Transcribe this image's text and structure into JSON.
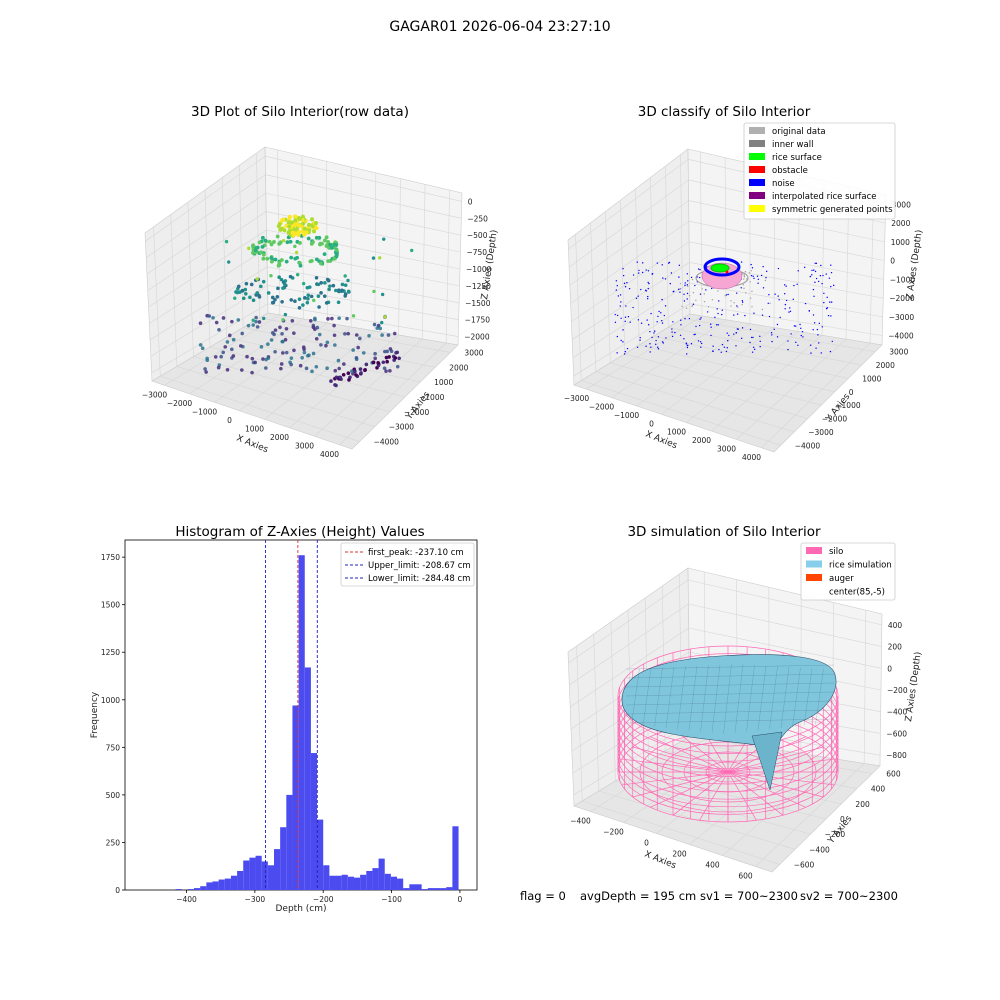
{
  "suptitle": "GAGAR01 2026-06-04 23:27:10",
  "footer": {
    "flag": "flag = 0",
    "avg": "avgDepth = 195 cm",
    "sv1": "sv1 = 700~2300",
    "sv2": "sv2 = 700~2300"
  },
  "colors": {
    "bar": "#4b4bf0",
    "peak_line": "#e03030",
    "limit_line": "#2020c0",
    "pane_light": "#f2f2f2",
    "pane_mid": "#e8e8e8",
    "grid": "#d6d6d6",
    "silo_wire": "#ff69b4",
    "rice_fill": "#7fc6dc",
    "rice_edge": "#2a4a6a"
  },
  "chart_data": [
    {
      "type": "scatter",
      "subtype": "3d",
      "title": "3D Plot of Silo Interior(row data)",
      "xlabel": "X Axies",
      "ylabel": "Y Axies",
      "zlabel": "Z Axies (Depth)",
      "xticks": [
        "−3000",
        "−2000",
        "−1000",
        "0",
        "1000",
        "2000",
        "3000",
        "4000"
      ],
      "yticks": [
        "3000",
        "2000",
        "1000",
        "−1000",
        "−2000",
        "−3000",
        "−4000"
      ],
      "zticks": [
        "0",
        "−250",
        "−500",
        "−750",
        "−1000",
        "−1250",
        "−1500",
        "−1750",
        "−2000"
      ],
      "colormap": "viridis"
    },
    {
      "type": "scatter",
      "subtype": "3d",
      "title": "3D classify of Silo Interior",
      "xlabel": "X Axies",
      "ylabel": "Y Axies",
      "zlabel": "Z Axies (Depth)",
      "xticks": [
        "−3000",
        "−2000",
        "−1000",
        "0",
        "1000",
        "2000",
        "3000",
        "4000"
      ],
      "yticks": [
        "3000",
        "2000",
        "1000",
        "0",
        "−1000",
        "−2000",
        "−3000",
        "−4000"
      ],
      "zticks": [
        "3000",
        "2000",
        "1000",
        "0",
        "−1000",
        "−2000",
        "−3000",
        "−4000"
      ],
      "legend": {
        "position": "top-right",
        "items": [
          {
            "label": "original data",
            "color": "#b0b0b0"
          },
          {
            "label": "inner wall",
            "color": "#808080"
          },
          {
            "label": "rice surface",
            "color": "#00ff00"
          },
          {
            "label": "obstacle",
            "color": "#ff0000"
          },
          {
            "label": "noise",
            "color": "#0000ff"
          },
          {
            "label": "interpolated rice surface",
            "color": "#800080"
          },
          {
            "label": "symmetric generated points",
            "color": "#ffff00"
          }
        ]
      }
    },
    {
      "type": "bar",
      "subtype": "histogram",
      "title": "Histogram of Z-Axies (Height) Values",
      "xlabel": "Depth (cm)",
      "ylabel": "Frequency",
      "xlim": [
        -490,
        25
      ],
      "ylim": [
        0,
        1840
      ],
      "xticks": [
        {
          "v": -400,
          "t": "−400"
        },
        {
          "v": -300,
          "t": "−300"
        },
        {
          "v": -200,
          "t": "−200"
        },
        {
          "v": -100,
          "t": "−100"
        },
        {
          "v": 0,
          "t": "0"
        }
      ],
      "yticks": [
        {
          "v": 0,
          "t": "0"
        },
        {
          "v": 250,
          "t": "250"
        },
        {
          "v": 500,
          "t": "500"
        },
        {
          "v": 750,
          "t": "750"
        },
        {
          "v": 1000,
          "t": "1000"
        },
        {
          "v": 1250,
          "t": "1250"
        },
        {
          "v": 1500,
          "t": "1500"
        },
        {
          "v": 1750,
          "t": "1750"
        }
      ],
      "bins": [
        {
          "x0": -416,
          "x1": -407,
          "h": 5
        },
        {
          "x0": -398,
          "x1": -389,
          "h": 5
        },
        {
          "x0": -389,
          "x1": -380,
          "h": 10
        },
        {
          "x0": -380,
          "x1": -371,
          "h": 20
        },
        {
          "x0": -371,
          "x1": -362,
          "h": 40
        },
        {
          "x0": -362,
          "x1": -353,
          "h": 45
        },
        {
          "x0": -353,
          "x1": -344,
          "h": 55
        },
        {
          "x0": -344,
          "x1": -335,
          "h": 60
        },
        {
          "x0": -335,
          "x1": -326,
          "h": 75
        },
        {
          "x0": -326,
          "x1": -317,
          "h": 100
        },
        {
          "x0": -317,
          "x1": -308,
          "h": 155
        },
        {
          "x0": -308,
          "x1": -299,
          "h": 170
        },
        {
          "x0": -299,
          "x1": -290,
          "h": 180
        },
        {
          "x0": -290,
          "x1": -281,
          "h": 150
        },
        {
          "x0": -281,
          "x1": -272,
          "h": 130
        },
        {
          "x0": -272,
          "x1": -263,
          "h": 215
        },
        {
          "x0": -263,
          "x1": -254,
          "h": 330
        },
        {
          "x0": -254,
          "x1": -245,
          "h": 500
        },
        {
          "x0": -245,
          "x1": -236,
          "h": 970
        },
        {
          "x0": -236,
          "x1": -227,
          "h": 1760
        },
        {
          "x0": -227,
          "x1": -218,
          "h": 1170
        },
        {
          "x0": -218,
          "x1": -209,
          "h": 720
        },
        {
          "x0": -209,
          "x1": -200,
          "h": 370
        },
        {
          "x0": -200,
          "x1": -191,
          "h": 130
        },
        {
          "x0": -191,
          "x1": -182,
          "h": 75
        },
        {
          "x0": -182,
          "x1": -173,
          "h": 75
        },
        {
          "x0": -173,
          "x1": -164,
          "h": 80
        },
        {
          "x0": -164,
          "x1": -155,
          "h": 70
        },
        {
          "x0": -155,
          "x1": -146,
          "h": 65
        },
        {
          "x0": -146,
          "x1": -137,
          "h": 80
        },
        {
          "x0": -137,
          "x1": -128,
          "h": 100
        },
        {
          "x0": -128,
          "x1": -119,
          "h": 115
        },
        {
          "x0": -119,
          "x1": -110,
          "h": 165
        },
        {
          "x0": -110,
          "x1": -101,
          "h": 85
        },
        {
          "x0": -101,
          "x1": -92,
          "h": 70
        },
        {
          "x0": -92,
          "x1": -83,
          "h": 60
        },
        {
          "x0": -83,
          "x1": -74,
          "h": 10
        },
        {
          "x0": -74,
          "x1": -65,
          "h": 30
        },
        {
          "x0": -65,
          "x1": -56,
          "h": 30
        },
        {
          "x0": -56,
          "x1": -47,
          "h": 5
        },
        {
          "x0": -47,
          "x1": -38,
          "h": 10
        },
        {
          "x0": -38,
          "x1": -29,
          "h": 10
        },
        {
          "x0": -29,
          "x1": -20,
          "h": 10
        },
        {
          "x0": -20,
          "x1": -11,
          "h": 15
        },
        {
          "x0": -11,
          "x1": -2,
          "h": 335
        }
      ],
      "vlines": [
        {
          "x": -237.1,
          "label": "first_peak: -237.10 cm",
          "color": "#e03030"
        },
        {
          "x": -208.67,
          "label": "Upper_limit: -208.67 cm",
          "color": "#2020c0"
        },
        {
          "x": -284.48,
          "label": "Lower_limit: -284.48 cm",
          "color": "#2020c0"
        }
      ],
      "legend": {
        "position": "top-right"
      }
    },
    {
      "type": "area",
      "subtype": "3d-surface",
      "title": "3D simulation of Silo Interior",
      "xlabel": "X Axies",
      "ylabel": "Y Axies",
      "zlabel": "Z Axies (Depth)",
      "xticks": [
        "−400",
        "−200",
        "0",
        "200",
        "400",
        "600"
      ],
      "yticks": [
        "600",
        "400",
        "200",
        "0",
        "−200",
        "−400",
        "−600"
      ],
      "zticks": [
        "400",
        "200",
        "0",
        "−200",
        "−400",
        "−600",
        "−800"
      ],
      "legend": {
        "position": "top-right",
        "items": [
          {
            "label": "silo",
            "color": "#ff69b4"
          },
          {
            "label": "rice simulation",
            "color": "#87ceeb"
          },
          {
            "label": "auger",
            "color": "#ff4500"
          },
          {
            "label": "center(85,-5)",
            "color": ""
          }
        ]
      }
    }
  ]
}
